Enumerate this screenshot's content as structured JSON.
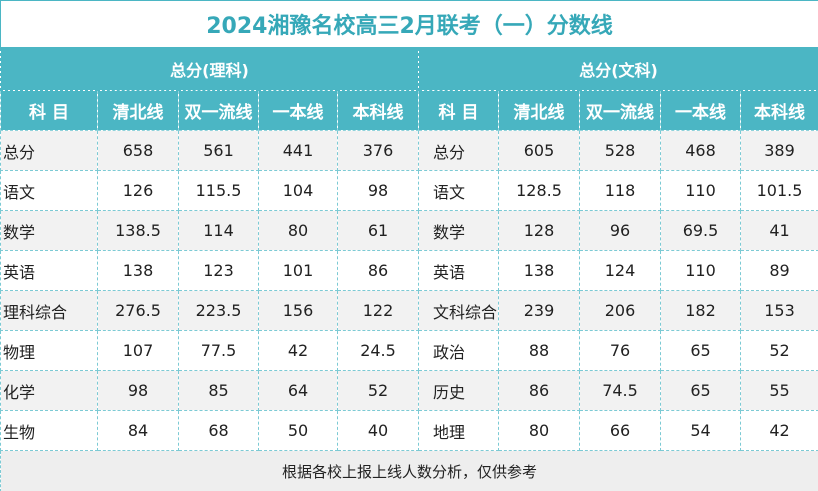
{
  "title": "2024湘豫名校高三2月联考（一）分数线",
  "groups": [
    "总分(理科)",
    "总分(文科)"
  ],
  "headers": [
    "科 目",
    "清北线",
    "双一流线",
    "一本线",
    "本科线",
    "科 目",
    "清北线",
    "双一流线",
    "一本线",
    "本科线"
  ],
  "rows": [
    [
      "总分",
      658,
      561,
      441,
      376,
      "总分",
      605,
      528,
      468,
      389
    ],
    [
      "语文",
      126,
      115.5,
      104,
      98,
      "语文",
      128.5,
      118,
      110,
      101.5
    ],
    [
      "数学",
      138.5,
      114,
      80,
      61,
      "数学",
      128,
      96,
      69.5,
      41
    ],
    [
      "英语",
      138,
      123,
      101,
      86,
      "英语",
      138,
      124,
      110,
      89
    ],
    [
      "理科综合",
      276.5,
      223.5,
      156,
      122,
      "文科综合",
      239,
      206,
      182,
      153
    ],
    [
      "物理",
      107,
      77.5,
      42,
      24.5,
      "政治",
      88,
      76,
      65,
      52
    ],
    [
      "化学",
      98,
      85,
      64,
      52,
      "历史",
      86,
      74.5,
      65,
      55
    ],
    [
      "生物",
      84,
      68,
      50,
      40,
      "地理",
      80,
      66,
      54,
      42
    ]
  ],
  "footer": "根据各校上报上线人数分析，仅供参考"
}
